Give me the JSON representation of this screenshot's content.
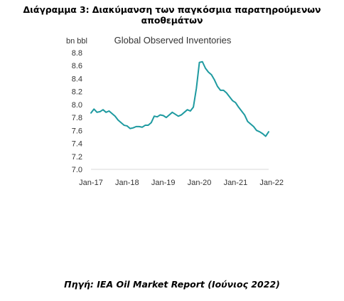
{
  "caption": "Διάγραμμα 3: Διακύμανση των παγκόσμια παρατηρούμενων αποθεμάτων",
  "source": "Πηγή: IEA Oil Market Report (Ιούνιος 2022)",
  "colors": {
    "line": "#1e9aa0",
    "text": "#333333"
  },
  "chart_data": {
    "type": "line",
    "title": "Global Observed Inventories",
    "ylabel": "bn bbl",
    "ylim": [
      7.0,
      8.8
    ],
    "yticks": [
      "7.0",
      "7.2",
      "7.4",
      "7.6",
      "7.8",
      "8.0",
      "8.2",
      "8.4",
      "8.6",
      "8.8"
    ],
    "xticks": [
      "Jan-17",
      "Jan-18",
      "Jan-19",
      "Jan-20",
      "Jan-21",
      "Jan-22"
    ],
    "grid": false,
    "series": [
      {
        "values": [
          7.87,
          7.93,
          7.88,
          7.89,
          7.92,
          7.88,
          7.9,
          7.86,
          7.82,
          7.76,
          7.72,
          7.68,
          7.67,
          7.63,
          7.64,
          7.66,
          7.66,
          7.65,
          7.68,
          7.68,
          7.72,
          7.82,
          7.81,
          7.84,
          7.83,
          7.8,
          7.84,
          7.88,
          7.85,
          7.82,
          7.84,
          7.88,
          7.92,
          7.9,
          7.96,
          8.25,
          8.65,
          8.66,
          8.56,
          8.5,
          8.46,
          8.38,
          8.28,
          8.22,
          8.22,
          8.18,
          8.12,
          8.06,
          8.03,
          7.96,
          7.9,
          7.84,
          7.74,
          7.7,
          7.66,
          7.6,
          7.58,
          7.55,
          7.51,
          7.58
        ]
      }
    ]
  }
}
